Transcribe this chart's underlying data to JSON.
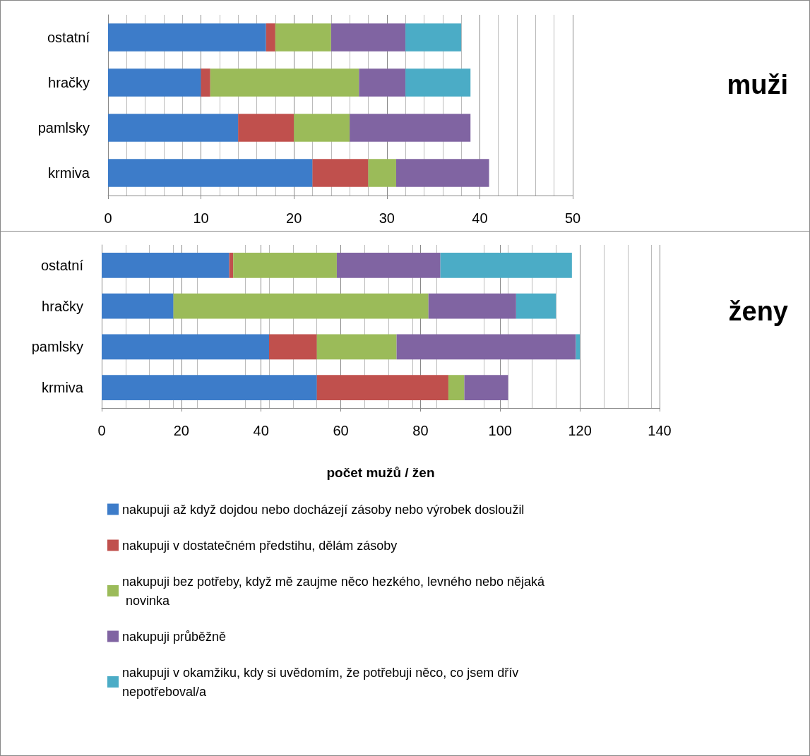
{
  "chart_data": [
    {
      "type": "bar",
      "annotations": [
        "muži"
      ],
      "orientation": "horizontal",
      "stacked": true,
      "categories": [
        "ostatní",
        "hračky",
        "pamlsky",
        "krmiva"
      ],
      "xlim": [
        0,
        50
      ],
      "xticks": [
        0,
        10,
        20,
        30,
        40,
        50
      ],
      "grid": "x",
      "series": [
        {
          "color": "#3d7cc9",
          "values": [
            17,
            10,
            14,
            22
          ]
        },
        {
          "color": "#c0504d",
          "values": [
            1,
            1,
            6,
            6
          ]
        },
        {
          "color": "#9bbb59",
          "values": [
            6,
            16,
            6,
            3
          ]
        },
        {
          "color": "#8064a2",
          "values": [
            8,
            5,
            13,
            10
          ]
        },
        {
          "color": "#4bacc6",
          "values": [
            6,
            7,
            0,
            0
          ]
        }
      ]
    },
    {
      "type": "bar",
      "annotations": [
        "ženy"
      ],
      "orientation": "horizontal",
      "stacked": true,
      "categories": [
        "ostatní",
        "hračky",
        "pamlsky",
        "krmiva"
      ],
      "xlim": [
        0,
        140
      ],
      "xticks": [
        0,
        20,
        40,
        60,
        80,
        100,
        120,
        140
      ],
      "grid": "x",
      "xlabel": "počet mužů / žen",
      "legend": "bottom",
      "series": [
        {
          "name": "nakupuji až když dojdou nebo docházejí zásoby nebo výrobek dosloužil",
          "color": "#3d7cc9",
          "values": [
            32,
            18,
            42,
            54
          ]
        },
        {
          "name": "nakupuji v dostatečném předstihu, dělám zásoby",
          "color": "#c0504d",
          "values": [
            1,
            0,
            12,
            33
          ]
        },
        {
          "name": "nakupuji bez potřeby, když mě zaujme něco hezkého, levného nebo nějaká novinka",
          "color": "#9bbb59",
          "values": [
            26,
            64,
            20,
            4
          ]
        },
        {
          "name": "nakupuji průběžně",
          "color": "#8064a2",
          "values": [
            26,
            22,
            45,
            11
          ]
        },
        {
          "name": "nakupuji v okamžiku, kdy si uvědomím, že potřebuji něco, co jsem dřív nepotřeboval/a",
          "color": "#4bacc6",
          "values": [
            33,
            10,
            1,
            0
          ]
        }
      ]
    }
  ]
}
